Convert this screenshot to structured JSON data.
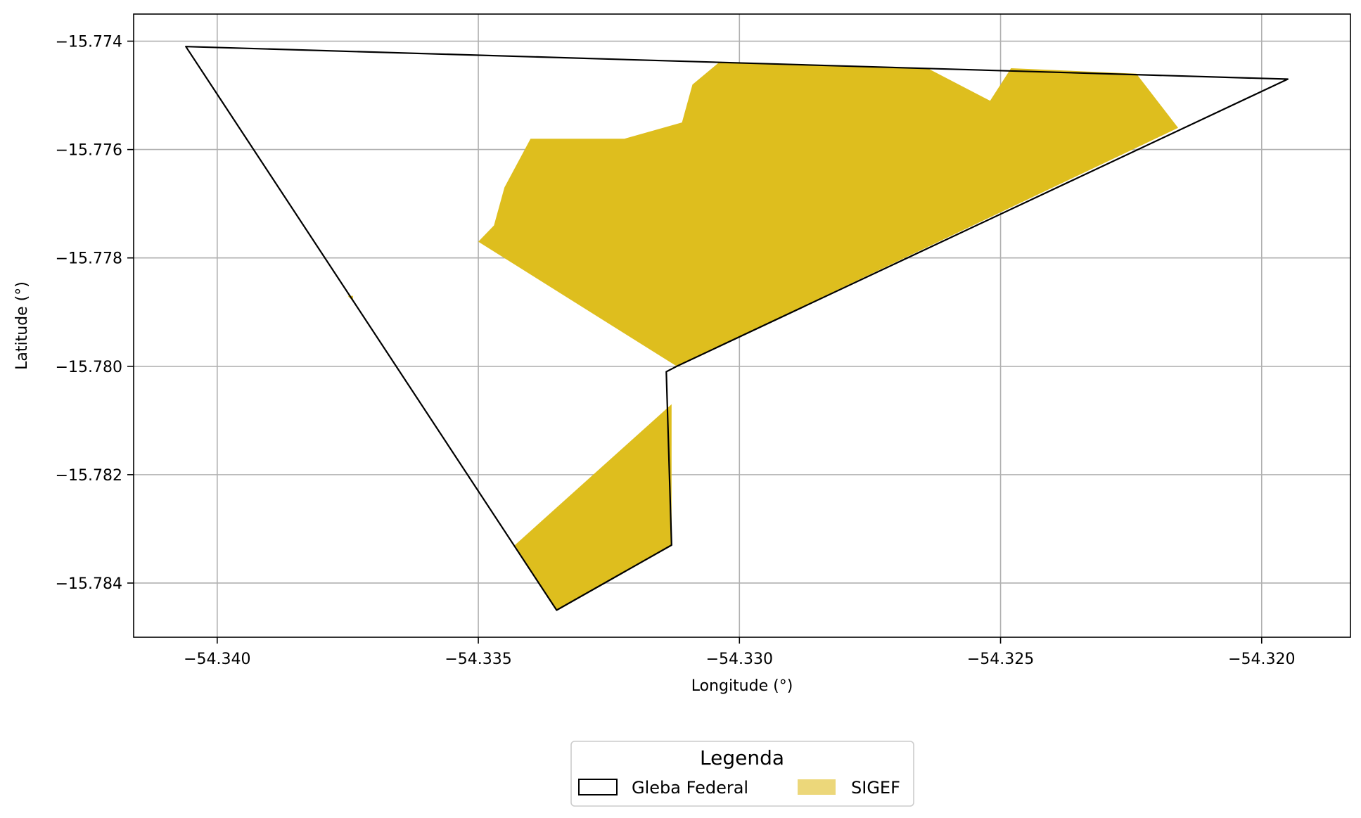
{
  "chart_data": {
    "type": "map",
    "xlabel": "Longitude (°)",
    "ylabel": "Latitude (°)",
    "xlim": [
      -54.3416,
      -54.3183
    ],
    "ylim": [
      -15.785,
      -15.7735
    ],
    "xticks": [
      -54.34,
      -54.335,
      -54.33,
      -54.325,
      -54.32
    ],
    "xtick_labels": [
      "−54.340",
      "−54.335",
      "−54.330",
      "−54.325",
      "−54.320"
    ],
    "yticks": [
      -15.774,
      -15.776,
      -15.778,
      -15.78,
      -15.782,
      -15.784
    ],
    "ytick_labels": [
      "−15.774",
      "−15.776",
      "−15.778",
      "−15.780",
      "−15.782",
      "−15.784"
    ],
    "grid": true,
    "legend": {
      "title": "Legenda",
      "placement": "bottom-center",
      "entries": [
        {
          "name": "Gleba Federal",
          "style": "outline",
          "edge_color": "#000000",
          "fill_color": "#ffffff"
        },
        {
          "name": "SIGEF",
          "style": "fill",
          "fill_color": "#ecd77a"
        }
      ]
    },
    "layers": [
      {
        "name": "SIGEF",
        "color": "#debe1e",
        "polygons": [
          [
            [
              -54.335,
              -15.7777
            ],
            [
              -54.3347,
              -15.7774
            ],
            [
              -54.3345,
              -15.7767
            ],
            [
              -54.334,
              -15.7758
            ],
            [
              -54.3332,
              -15.7758
            ],
            [
              -54.3322,
              -15.7758
            ],
            [
              -54.3311,
              -15.7755
            ],
            [
              -54.3309,
              -15.7748
            ],
            [
              -54.3304,
              -15.7744
            ],
            [
              -54.3264,
              -15.7745
            ],
            [
              -54.3252,
              -15.7751
            ],
            [
              -54.3248,
              -15.7745
            ],
            [
              -54.3224,
              -15.7746
            ],
            [
              -54.3216,
              -15.7756
            ],
            [
              -54.3312,
              -15.78
            ]
          ],
          [
            [
              -54.3313,
              -15.7807
            ],
            [
              -54.3343,
              -15.7833
            ],
            [
              -54.3335,
              -15.7845
            ],
            [
              -54.3313,
              -15.7833
            ]
          ],
          [
            [
              -54.3375,
              -15.7787
            ],
            [
              -54.3374,
              -15.7788
            ],
            [
              -54.3374,
              -15.7787
            ]
          ]
        ]
      },
      {
        "name": "Gleba Federal",
        "color": "#000000",
        "polygons": [
          [
            [
              -54.3406,
              -15.7741
            ],
            [
              -54.3195,
              -15.7747
            ],
            [
              -54.3312,
              -15.78
            ],
            [
              -54.3314,
              -15.7801
            ],
            [
              -54.3313,
              -15.7833
            ],
            [
              -54.3335,
              -15.7845
            ]
          ]
        ]
      }
    ]
  }
}
